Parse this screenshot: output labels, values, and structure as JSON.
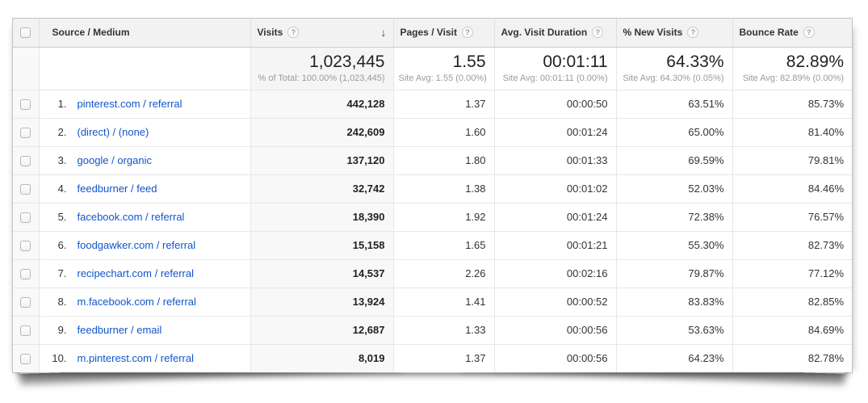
{
  "icons": {
    "help_glyph": "?",
    "sort_desc_glyph": "↓"
  },
  "colors": {
    "link_blue": "#1155cc",
    "header_bg": "#f2f2f2",
    "sorted_column_bg": "#f8f8f8",
    "subtext_gray": "#9a9a9a"
  },
  "table": {
    "columns": [
      {
        "key": "source",
        "label": "Source / Medium",
        "help": false,
        "sorted": false
      },
      {
        "key": "visits",
        "label": "Visits",
        "help": true,
        "sorted": true
      },
      {
        "key": "pages",
        "label": "Pages / Visit",
        "help": true,
        "sorted": false
      },
      {
        "key": "duration",
        "label": "Avg. Visit Duration",
        "help": true,
        "sorted": false
      },
      {
        "key": "new",
        "label": "% New Visits",
        "help": true,
        "sorted": false
      },
      {
        "key": "bounce",
        "label": "Bounce Rate",
        "help": true,
        "sorted": false
      }
    ],
    "summary": {
      "visits": {
        "value": "1,023,445",
        "sub": "% of Total: 100.00% (1,023,445)"
      },
      "pages": {
        "value": "1.55",
        "sub": "Site Avg: 1.55 (0.00%)"
      },
      "duration": {
        "value": "00:01:11",
        "sub": "Site Avg: 00:01:11 (0.00%)"
      },
      "new": {
        "value": "64.33%",
        "sub": "Site Avg: 64.30% (0.05%)"
      },
      "bounce": {
        "value": "82.89%",
        "sub": "Site Avg: 82.89% (0.00%)"
      }
    },
    "rows": [
      {
        "index": "1.",
        "source": "pinterest.com / referral",
        "visits": "442,128",
        "pages": "1.37",
        "duration": "00:00:50",
        "new": "63.51%",
        "bounce": "85.73%"
      },
      {
        "index": "2.",
        "source": "(direct) / (none)",
        "visits": "242,609",
        "pages": "1.60",
        "duration": "00:01:24",
        "new": "65.00%",
        "bounce": "81.40%"
      },
      {
        "index": "3.",
        "source": "google / organic",
        "visits": "137,120",
        "pages": "1.80",
        "duration": "00:01:33",
        "new": "69.59%",
        "bounce": "79.81%"
      },
      {
        "index": "4.",
        "source": "feedburner / feed",
        "visits": "32,742",
        "pages": "1.38",
        "duration": "00:01:02",
        "new": "52.03%",
        "bounce": "84.46%"
      },
      {
        "index": "5.",
        "source": "facebook.com / referral",
        "visits": "18,390",
        "pages": "1.92",
        "duration": "00:01:24",
        "new": "72.38%",
        "bounce": "76.57%"
      },
      {
        "index": "6.",
        "source": "foodgawker.com / referral",
        "visits": "15,158",
        "pages": "1.65",
        "duration": "00:01:21",
        "new": "55.30%",
        "bounce": "82.73%"
      },
      {
        "index": "7.",
        "source": "recipechart.com / referral",
        "visits": "14,537",
        "pages": "2.26",
        "duration": "00:02:16",
        "new": "79.87%",
        "bounce": "77.12%"
      },
      {
        "index": "8.",
        "source": "m.facebook.com / referral",
        "visits": "13,924",
        "pages": "1.41",
        "duration": "00:00:52",
        "new": "83.83%",
        "bounce": "82.85%"
      },
      {
        "index": "9.",
        "source": "feedburner / email",
        "visits": "12,687",
        "pages": "1.33",
        "duration": "00:00:56",
        "new": "53.63%",
        "bounce": "84.69%"
      },
      {
        "index": "10.",
        "source": "m.pinterest.com / referral",
        "visits": "8,019",
        "pages": "1.37",
        "duration": "00:00:56",
        "new": "64.23%",
        "bounce": "82.78%"
      }
    ]
  }
}
